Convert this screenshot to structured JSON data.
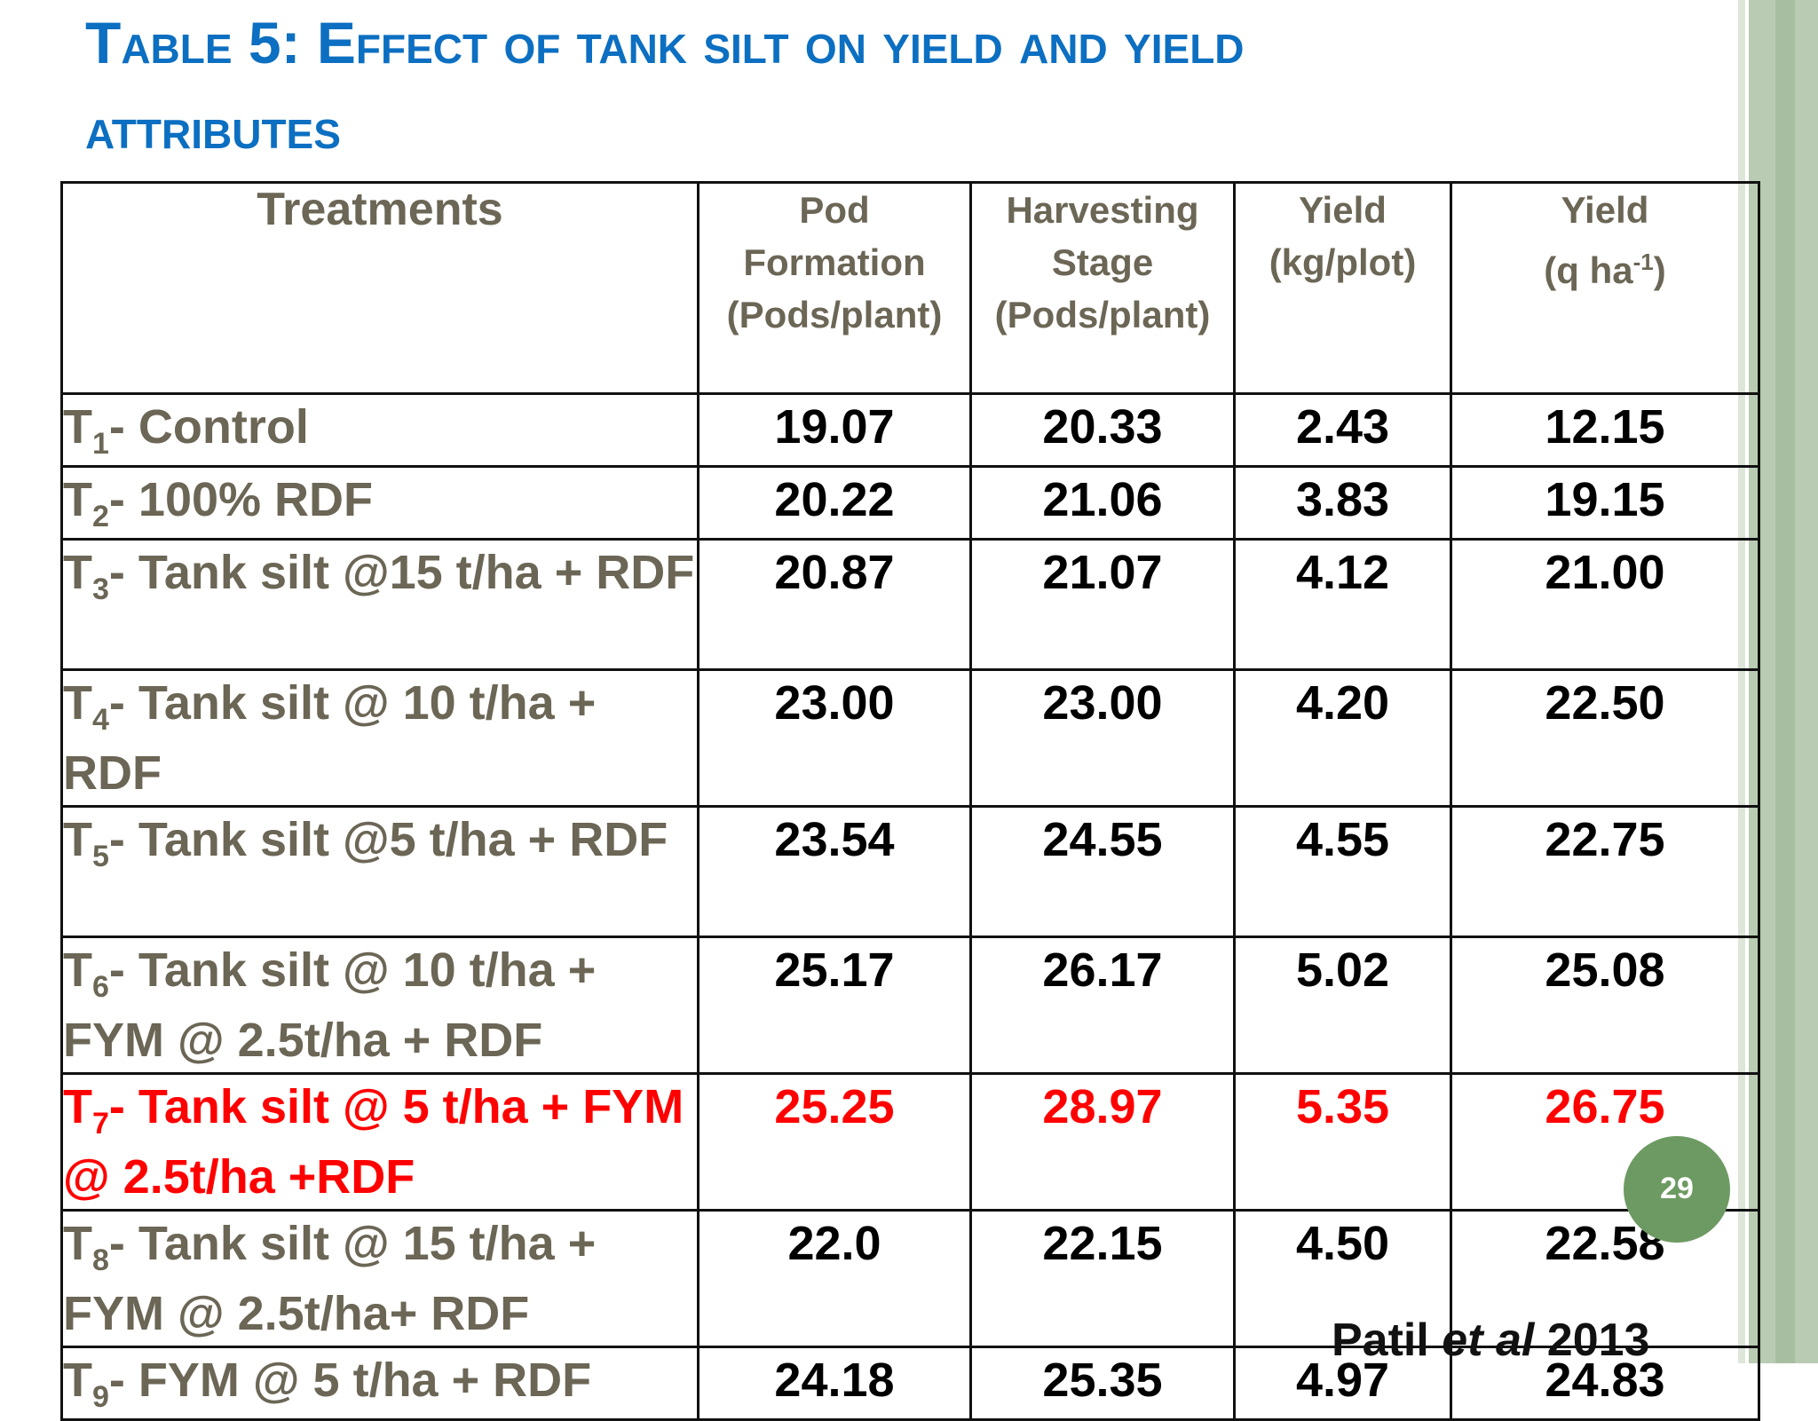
{
  "slide": {
    "title": "Table 5: Effect of tank silt on yield and yield attributes",
    "page_number": "29",
    "citation": {
      "author": "Patil",
      "etal": "et al",
      "year": "2013"
    }
  },
  "table": {
    "headers": {
      "treatments": "Treatments",
      "pod_formation": [
        "Pod",
        "Formation",
        "(Pods/plant)"
      ],
      "harvesting_stage": [
        "Harvesting",
        "Stage",
        "(Pods/plant)"
      ],
      "yield_plot": [
        "Yield",
        "(kg/plot)"
      ],
      "yield_ha": {
        "line1": "Yield",
        "pre": "(q ha",
        "sup": "-1",
        "post": ")"
      }
    },
    "rows": [
      {
        "t": "T",
        "sub": "1",
        "label": "- Control",
        "values": [
          "19.07",
          "20.33",
          "2.43",
          "12.15"
        ]
      },
      {
        "t": "T",
        "sub": "2",
        "label": "- 100% RDF",
        "values": [
          "20.22",
          "21.06",
          "3.83",
          "19.15"
        ]
      },
      {
        "t": "T",
        "sub": "3",
        "label": "- Tank silt @15 t/ha + RDF",
        "values": [
          "20.87",
          "21.07",
          "4.12",
          "21.00"
        ]
      },
      {
        "t": "T",
        "sub": "4",
        "label": "- Tank silt @ 10 t/ha + RDF",
        "values": [
          "23.00",
          "23.00",
          "4.20",
          "22.50"
        ]
      },
      {
        "t": "T",
        "sub": "5",
        "label": "- Tank silt @5 t/ha + RDF",
        "values": [
          "23.54",
          "24.55",
          "4.55",
          "22.75"
        ]
      },
      {
        "t": "T",
        "sub": "6",
        "label": "- Tank silt @ 10 t/ha + FYM @ 2.5t/ha + RDF",
        "values": [
          "25.17",
          "26.17",
          "5.02",
          "25.08"
        ]
      },
      {
        "t": "T",
        "sub": "7",
        "label": "- Tank silt @ 5 t/ha + FYM @ 2.5t/ha +RDF",
        "values": [
          "25.25",
          "28.97",
          "5.35",
          "26.75"
        ]
      },
      {
        "t": "T",
        "sub": "8",
        "label": "- Tank silt @ 15 t/ha + FYM @ 2.5t/ha+ RDF",
        "values": [
          "22.0",
          "22.15",
          "4.50",
          "22.58"
        ]
      },
      {
        "t": "T",
        "sub": "9",
        "label": "- FYM @ 5 t/ha + RDF",
        "values": [
          "24.18",
          "25.35",
          "4.97",
          "24.83"
        ]
      }
    ]
  },
  "colors": {
    "title": "#0c6fc1",
    "treatment_text": "#6b6655",
    "highlight": "#ff0000",
    "page_badge": "#6d9a63"
  }
}
